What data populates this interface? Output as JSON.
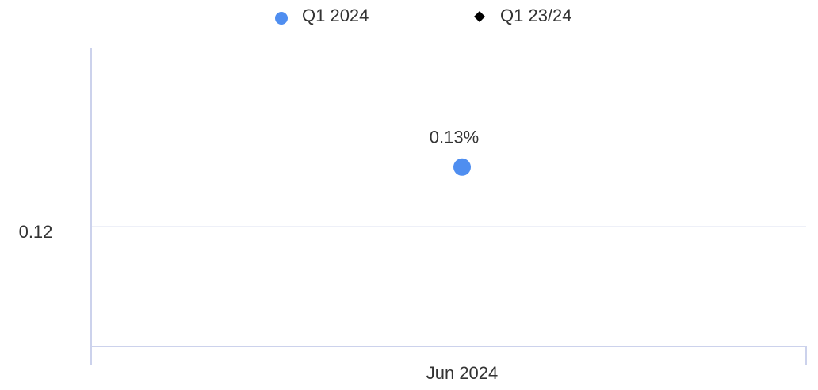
{
  "chart_data": {
    "type": "scatter",
    "categories": [
      "Jun 2024"
    ],
    "series": [
      {
        "name": "Q1 2024",
        "color": "#4f8ef0",
        "marker": "circle",
        "values": [
          0.13
        ],
        "value_labels": [
          "0.13%"
        ]
      },
      {
        "name": "Q1 23/24",
        "color": "#000000",
        "marker": "diamond",
        "values": [
          null
        ]
      }
    ],
    "ylim": [
      0.1,
      0.15
    ],
    "yticks": [
      0.12
    ],
    "grid": true,
    "legend": "top"
  }
}
